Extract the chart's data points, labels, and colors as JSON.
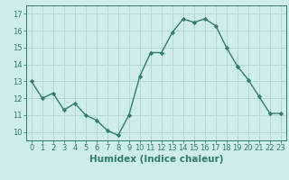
{
  "x": [
    0,
    1,
    2,
    3,
    4,
    5,
    6,
    7,
    8,
    9,
    10,
    11,
    12,
    13,
    14,
    15,
    16,
    17,
    18,
    19,
    20,
    21,
    22,
    23
  ],
  "y": [
    13.0,
    12.0,
    12.3,
    11.3,
    11.7,
    11.0,
    10.7,
    10.1,
    9.8,
    11.0,
    13.3,
    14.7,
    14.7,
    15.9,
    16.7,
    16.5,
    16.7,
    16.3,
    15.0,
    13.9,
    13.1,
    12.1,
    11.1,
    11.1
  ],
  "line_color": "#2e7d6e",
  "marker": "D",
  "marker_size": 2.2,
  "bg_color": "#ceecea",
  "grid_color": "#aed4d0",
  "xlabel": "Humidex (Indice chaleur)",
  "xlim": [
    -0.5,
    23.5
  ],
  "ylim": [
    9.5,
    17.5
  ],
  "yticks": [
    10,
    11,
    12,
    13,
    14,
    15,
    16,
    17
  ],
  "xticks": [
    0,
    1,
    2,
    3,
    4,
    5,
    6,
    7,
    8,
    9,
    10,
    11,
    12,
    13,
    14,
    15,
    16,
    17,
    18,
    19,
    20,
    21,
    22,
    23
  ],
  "tick_fontsize": 6.0,
  "xlabel_fontsize": 7.5,
  "line_width": 1.0
}
